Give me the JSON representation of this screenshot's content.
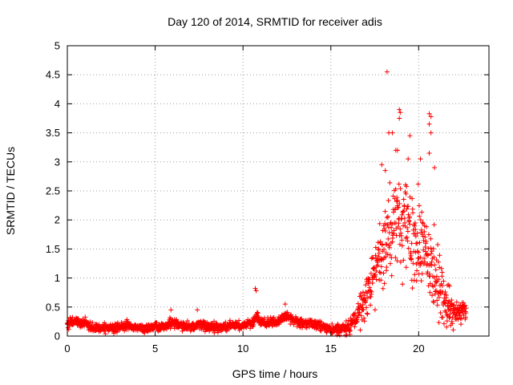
{
  "chart_data": {
    "type": "scatter",
    "title": "Day 120 of 2014, SRMTID for receiver adis",
    "xlabel": "GPS time / hours",
    "ylabel": "SRMTID / TECUs",
    "xlim": [
      0,
      24
    ],
    "ylim": [
      0,
      5
    ],
    "xticks": [
      0,
      5,
      10,
      15,
      20
    ],
    "yticks": [
      0,
      0.5,
      1,
      1.5,
      2,
      2.5,
      3,
      3.5,
      4,
      4.5,
      5
    ],
    "xtick_labels": [
      "0",
      "5",
      "10",
      "15",
      "20"
    ],
    "ytick_labels": [
      "0",
      "0.5",
      "1",
      "1.5",
      "2",
      "2.5",
      "3",
      "3.5",
      "4",
      "4.5",
      "5"
    ],
    "grid": true,
    "marker": "+",
    "series": [
      {
        "name": "SRMTID",
        "color": "#ff0000",
        "profile": [
          [
            0.0,
            0.22
          ],
          [
            0.5,
            0.25
          ],
          [
            1.0,
            0.22
          ],
          [
            1.5,
            0.15
          ],
          [
            2.0,
            0.14
          ],
          [
            2.5,
            0.13
          ],
          [
            3.0,
            0.15
          ],
          [
            3.5,
            0.18
          ],
          [
            4.0,
            0.13
          ],
          [
            4.5,
            0.14
          ],
          [
            5.0,
            0.15
          ],
          [
            5.5,
            0.18
          ],
          [
            6.0,
            0.22
          ],
          [
            6.5,
            0.18
          ],
          [
            7.0,
            0.16
          ],
          [
            7.5,
            0.2
          ],
          [
            8.0,
            0.17
          ],
          [
            8.5,
            0.16
          ],
          [
            9.0,
            0.16
          ],
          [
            9.5,
            0.18
          ],
          [
            10.0,
            0.2
          ],
          [
            10.5,
            0.22
          ],
          [
            10.8,
            0.35
          ],
          [
            11.0,
            0.22
          ],
          [
            11.5,
            0.25
          ],
          [
            12.0,
            0.25
          ],
          [
            12.5,
            0.35
          ],
          [
            13.0,
            0.25
          ],
          [
            13.5,
            0.22
          ],
          [
            14.0,
            0.2
          ],
          [
            14.5,
            0.18
          ],
          [
            15.0,
            0.12
          ],
          [
            15.5,
            0.12
          ],
          [
            16.0,
            0.18
          ],
          [
            16.5,
            0.35
          ],
          [
            17.0,
            0.65
          ],
          [
            17.5,
            1.05
          ],
          [
            18.0,
            1.55
          ],
          [
            18.5,
            1.9
          ],
          [
            19.0,
            1.95
          ],
          [
            19.5,
            1.8
          ],
          [
            20.0,
            1.5
          ],
          [
            20.5,
            1.4
          ],
          [
            21.0,
            1.05
          ],
          [
            21.5,
            0.65
          ],
          [
            22.0,
            0.4
          ],
          [
            22.5,
            0.45
          ],
          [
            22.7,
            0.4
          ]
        ],
        "spread_profile": [
          [
            0.0,
            0.12
          ],
          [
            15.0,
            0.12
          ],
          [
            16.5,
            0.3
          ],
          [
            17.5,
            0.8
          ],
          [
            18.5,
            1.2
          ],
          [
            19.0,
            1.3
          ],
          [
            20.0,
            1.2
          ],
          [
            21.0,
            0.9
          ],
          [
            22.0,
            0.35
          ],
          [
            22.7,
            0.2
          ]
        ],
        "n_points": 1700,
        "outliers": [
          {
            "x": 18.2,
            "y": 4.55
          },
          {
            "x": 18.9,
            "y": 3.9
          },
          {
            "x": 18.95,
            "y": 3.85
          },
          {
            "x": 18.9,
            "y": 3.75
          },
          {
            "x": 20.6,
            "y": 3.83
          },
          {
            "x": 20.7,
            "y": 3.78
          },
          {
            "x": 20.6,
            "y": 3.65
          },
          {
            "x": 20.7,
            "y": 3.5
          },
          {
            "x": 18.3,
            "y": 3.5
          },
          {
            "x": 18.5,
            "y": 3.5
          },
          {
            "x": 19.5,
            "y": 3.45
          },
          {
            "x": 18.7,
            "y": 3.2
          },
          {
            "x": 18.8,
            "y": 3.2
          },
          {
            "x": 20.6,
            "y": 3.15
          },
          {
            "x": 17.9,
            "y": 2.95
          },
          {
            "x": 18.1,
            "y": 2.85
          },
          {
            "x": 19.4,
            "y": 3.05
          },
          {
            "x": 20.1,
            "y": 3.05
          },
          {
            "x": 20.9,
            "y": 2.9
          },
          {
            "x": 10.7,
            "y": 0.82
          },
          {
            "x": 10.75,
            "y": 0.78
          },
          {
            "x": 12.4,
            "y": 0.55
          },
          {
            "x": 5.9,
            "y": 0.45
          },
          {
            "x": 7.4,
            "y": 0.45
          }
        ]
      }
    ]
  }
}
